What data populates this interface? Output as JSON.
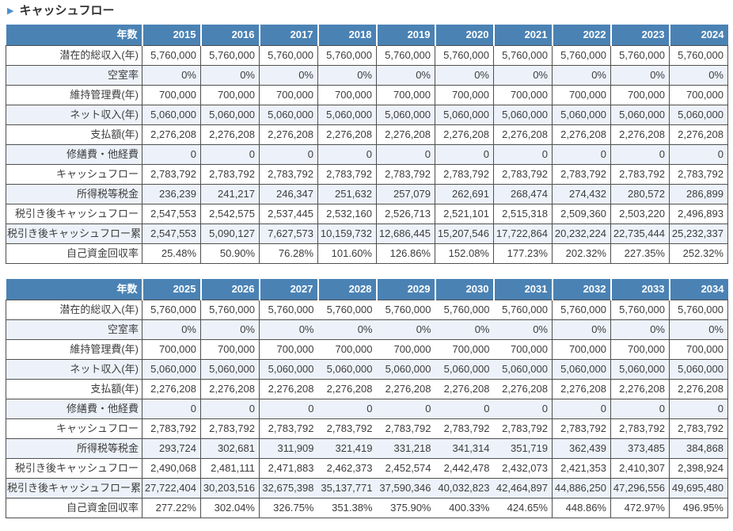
{
  "title": {
    "arrow": "▶",
    "text": "キャッシュフロー"
  },
  "colors": {
    "header_bg": "#4a82b4",
    "header_text": "#ffffff",
    "alt_row_bg": "#edf2fa",
    "row_bg": "#ffffff",
    "border": "#4f4f4f",
    "title_arrow": "#4e8fcb",
    "text": "#3c3c3c"
  },
  "tables": [
    {
      "corner_label": "年数",
      "years": [
        "2015",
        "2016",
        "2017",
        "2018",
        "2019",
        "2020",
        "2021",
        "2022",
        "2023",
        "2024"
      ],
      "rows": [
        {
          "label": "潜在的総収入(年)",
          "values": [
            "5,760,000",
            "5,760,000",
            "5,760,000",
            "5,760,000",
            "5,760,000",
            "5,760,000",
            "5,760,000",
            "5,760,000",
            "5,760,000",
            "5,760,000"
          ]
        },
        {
          "label": "空室率",
          "values": [
            "0%",
            "0%",
            "0%",
            "0%",
            "0%",
            "0%",
            "0%",
            "0%",
            "0%",
            "0%"
          ]
        },
        {
          "label": "維持管理費(年)",
          "values": [
            "700,000",
            "700,000",
            "700,000",
            "700,000",
            "700,000",
            "700,000",
            "700,000",
            "700,000",
            "700,000",
            "700,000"
          ]
        },
        {
          "label": "ネット収入(年)",
          "values": [
            "5,060,000",
            "5,060,000",
            "5,060,000",
            "5,060,000",
            "5,060,000",
            "5,060,000",
            "5,060,000",
            "5,060,000",
            "5,060,000",
            "5,060,000"
          ]
        },
        {
          "label": "支払額(年)",
          "values": [
            "2,276,208",
            "2,276,208",
            "2,276,208",
            "2,276,208",
            "2,276,208",
            "2,276,208",
            "2,276,208",
            "2,276,208",
            "2,276,208",
            "2,276,208"
          ]
        },
        {
          "label": "修繕費・他経費",
          "values": [
            "0",
            "0",
            "0",
            "0",
            "0",
            "0",
            "0",
            "0",
            "0",
            "0"
          ]
        },
        {
          "label": "キャッシュフロー",
          "values": [
            "2,783,792",
            "2,783,792",
            "2,783,792",
            "2,783,792",
            "2,783,792",
            "2,783,792",
            "2,783,792",
            "2,783,792",
            "2,783,792",
            "2,783,792"
          ]
        },
        {
          "label": "所得税等税金",
          "values": [
            "236,239",
            "241,217",
            "246,347",
            "251,632",
            "257,079",
            "262,691",
            "268,474",
            "274,432",
            "280,572",
            "286,899"
          ]
        },
        {
          "label": "税引き後キャッシュフロー",
          "values": [
            "2,547,553",
            "2,542,575",
            "2,537,445",
            "2,532,160",
            "2,526,713",
            "2,521,101",
            "2,515,318",
            "2,509,360",
            "2,503,220",
            "2,496,893"
          ]
        },
        {
          "label": "税引き後キャッシュフロー累計",
          "values": [
            "2,547,553",
            "5,090,127",
            "7,627,573",
            "10,159,732",
            "12,686,445",
            "15,207,546",
            "17,722,864",
            "20,232,224",
            "22,735,444",
            "25,232,337"
          ]
        },
        {
          "label": "自己資金回収率",
          "values": [
            "25.48%",
            "50.90%",
            "76.28%",
            "101.60%",
            "126.86%",
            "152.08%",
            "177.23%",
            "202.32%",
            "227.35%",
            "252.32%"
          ]
        }
      ]
    },
    {
      "corner_label": "年数",
      "years": [
        "2025",
        "2026",
        "2027",
        "2028",
        "2029",
        "2030",
        "2031",
        "2032",
        "2033",
        "2034"
      ],
      "rows": [
        {
          "label": "潜在的総収入(年)",
          "values": [
            "5,760,000",
            "5,760,000",
            "5,760,000",
            "5,760,000",
            "5,760,000",
            "5,760,000",
            "5,760,000",
            "5,760,000",
            "5,760,000",
            "5,760,000"
          ]
        },
        {
          "label": "空室率",
          "values": [
            "0%",
            "0%",
            "0%",
            "0%",
            "0%",
            "0%",
            "0%",
            "0%",
            "0%",
            "0%"
          ]
        },
        {
          "label": "維持管理費(年)",
          "values": [
            "700,000",
            "700,000",
            "700,000",
            "700,000",
            "700,000",
            "700,000",
            "700,000",
            "700,000",
            "700,000",
            "700,000"
          ]
        },
        {
          "label": "ネット収入(年)",
          "values": [
            "5,060,000",
            "5,060,000",
            "5,060,000",
            "5,060,000",
            "5,060,000",
            "5,060,000",
            "5,060,000",
            "5,060,000",
            "5,060,000",
            "5,060,000"
          ]
        },
        {
          "label": "支払額(年)",
          "values": [
            "2,276,208",
            "2,276,208",
            "2,276,208",
            "2,276,208",
            "2,276,208",
            "2,276,208",
            "2,276,208",
            "2,276,208",
            "2,276,208",
            "2,276,208"
          ]
        },
        {
          "label": "修繕費・他経費",
          "values": [
            "0",
            "0",
            "0",
            "0",
            "0",
            "0",
            "0",
            "0",
            "0",
            "0"
          ]
        },
        {
          "label": "キャッシュフロー",
          "values": [
            "2,783,792",
            "2,783,792",
            "2,783,792",
            "2,783,792",
            "2,783,792",
            "2,783,792",
            "2,783,792",
            "2,783,792",
            "2,783,792",
            "2,783,792"
          ]
        },
        {
          "label": "所得税等税金",
          "values": [
            "293,724",
            "302,681",
            "311,909",
            "321,419",
            "331,218",
            "341,314",
            "351,719",
            "362,439",
            "373,485",
            "384,868"
          ]
        },
        {
          "label": "税引き後キャッシュフロー",
          "values": [
            "2,490,068",
            "2,481,111",
            "2,471,883",
            "2,462,373",
            "2,452,574",
            "2,442,478",
            "2,432,073",
            "2,421,353",
            "2,410,307",
            "2,398,924"
          ]
        },
        {
          "label": "税引き後キャッシュフロー累計",
          "values": [
            "27,722,404",
            "30,203,516",
            "32,675,398",
            "35,137,771",
            "37,590,346",
            "40,032,823",
            "42,464,897",
            "44,886,250",
            "47,296,556",
            "49,695,480"
          ]
        },
        {
          "label": "自己資金回収率",
          "values": [
            "277.22%",
            "302.04%",
            "326.75%",
            "351.38%",
            "375.90%",
            "400.33%",
            "424.65%",
            "448.86%",
            "472.97%",
            "496.95%"
          ]
        }
      ]
    }
  ]
}
